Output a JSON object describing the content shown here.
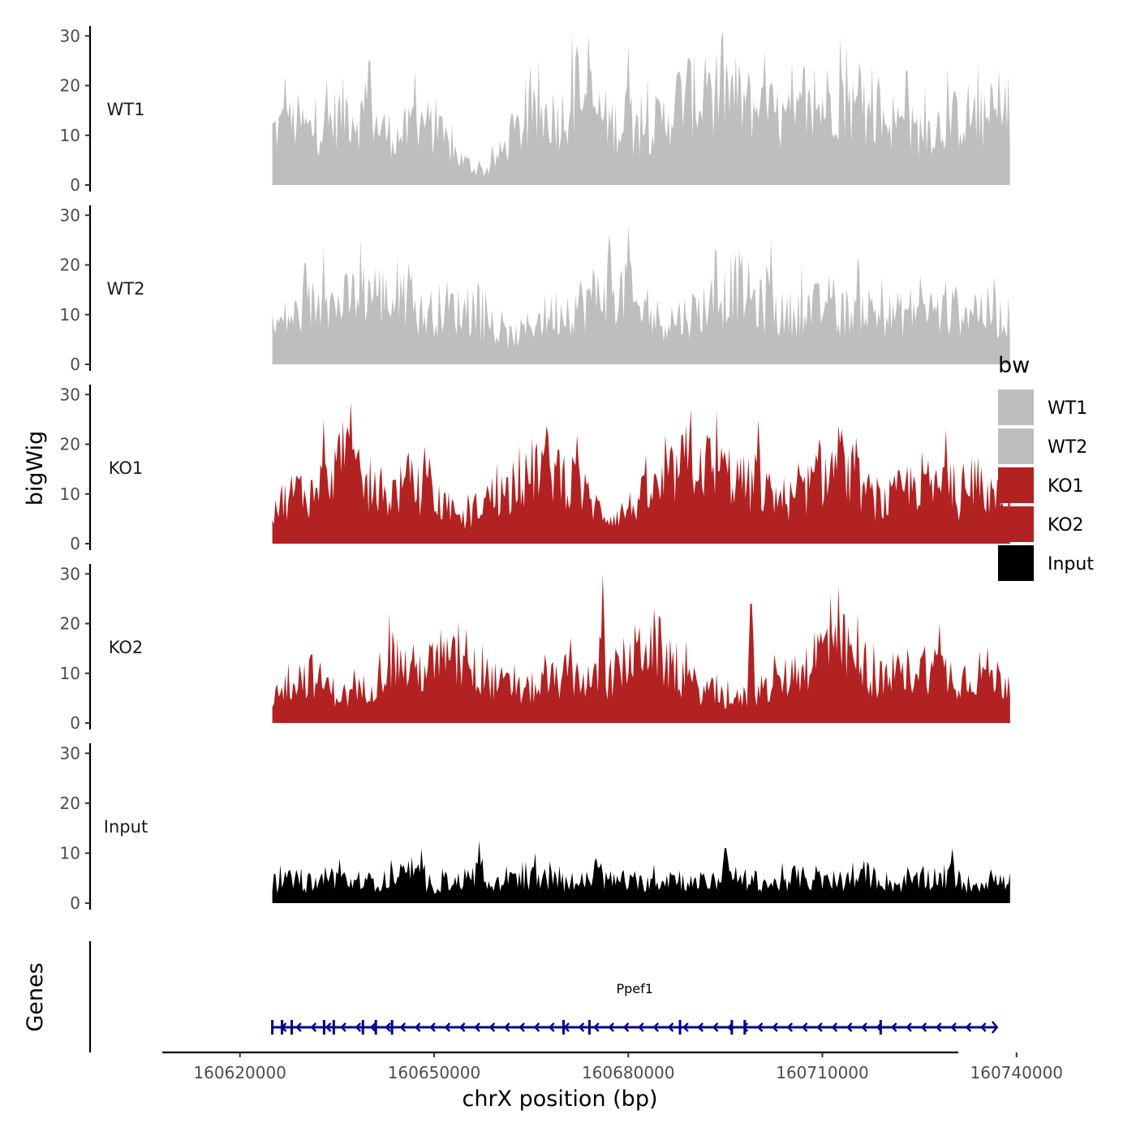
{
  "chart_data": {
    "type": "area",
    "xlabel": "chrX position (bp)",
    "ylabel": "bigWig",
    "genes_panel_label": "Genes",
    "xlim": [
      160608000,
      160731000
    ],
    "x_ticks": [
      160620000,
      160650000,
      160680000,
      160710000,
      160740000
    ],
    "x_tick_labels": [
      "160620000",
      "160650000",
      "160680000",
      "160710000",
      "160740000"
    ],
    "ylim": [
      0,
      32
    ],
    "y_ticks": [
      0,
      10,
      20,
      30
    ],
    "y_tick_labels": [
      "0",
      "10",
      "20",
      "30"
    ],
    "region": [
      160625000,
      160739000
    ],
    "legend_title": "bw",
    "legend": [
      {
        "label": "WT1",
        "color": "#bebebe"
      },
      {
        "label": "WT2",
        "color": "#bebebe"
      },
      {
        "label": "KO1",
        "color": "#b22222"
      },
      {
        "label": "KO2",
        "color": "#b22222"
      },
      {
        "label": "Input",
        "color": "#000000"
      }
    ],
    "series": [
      {
        "name": "WT1",
        "color": "#bebebe",
        "profile": [
          12,
          13,
          14,
          12,
          13,
          15,
          17,
          15,
          14,
          12,
          11,
          12,
          14,
          12,
          9,
          6,
          4,
          3,
          6,
          10,
          13,
          15,
          16,
          15,
          19,
          21,
          16,
          14,
          13,
          12,
          13,
          14,
          17,
          21,
          19,
          21,
          22,
          20,
          18,
          17,
          16,
          14,
          15,
          16,
          18,
          20,
          18,
          16,
          15,
          15,
          14,
          12,
          12,
          13,
          14,
          15,
          16,
          14,
          15,
          14
        ],
        "peaks": [
          [
            160627000,
            22
          ],
          [
            160640000,
            25
          ],
          [
            160647000,
            23
          ],
          [
            160680000,
            28
          ],
          [
            160692000,
            26
          ],
          [
            160701000,
            27
          ],
          [
            160723000,
            23
          ]
        ]
      },
      {
        "name": "WT2",
        "color": "#bebebe",
        "profile": [
          8,
          10,
          11,
          13,
          14,
          13,
          14,
          16,
          17,
          15,
          14,
          13,
          11,
          12,
          13,
          12,
          11,
          9,
          7,
          6,
          7,
          10,
          11,
          12,
          13,
          14,
          16,
          18,
          16,
          13,
          11,
          10,
          10,
          11,
          12,
          14,
          15,
          18,
          16,
          13,
          12,
          11,
          12,
          13,
          12,
          11,
          12,
          13,
          12,
          11,
          11,
          12,
          13,
          12,
          11,
          12,
          13,
          12,
          11,
          10
        ],
        "peaks": [
          [
            160633000,
            22
          ],
          [
            160680000,
            28
          ],
          [
            160702000,
            25
          ],
          [
            160711000,
            18
          ]
        ]
      },
      {
        "name": "KO1",
        "color": "#b22222",
        "profile": [
          8,
          10,
          12,
          11,
          13,
          19,
          18,
          14,
          11,
          10,
          12,
          13,
          12,
          10,
          8,
          5,
          7,
          10,
          11,
          12,
          13,
          17,
          18,
          16,
          14,
          11,
          8,
          6,
          7,
          9,
          11,
          12,
          15,
          18,
          19,
          17,
          16,
          15,
          13,
          12,
          11,
          10,
          10,
          13,
          15,
          17,
          15,
          13,
          10,
          9,
          11,
          13,
          14,
          12,
          11,
          10,
          11,
          12,
          10,
          9
        ],
        "peaks": [
          [
            160633000,
            25
          ],
          [
            160636000,
            25
          ],
          [
            160672000,
            22
          ],
          [
            160700000,
            25
          ],
          [
            160713000,
            23
          ],
          [
            160729000,
            23
          ]
        ]
      },
      {
        "name": "KO2",
        "color": "#b22222",
        "profile": [
          6,
          8,
          10,
          11,
          9,
          7,
          6,
          7,
          9,
          13,
          14,
          12,
          12,
          13,
          14,
          13,
          12,
          11,
          9,
          8,
          7,
          8,
          9,
          10,
          11,
          10,
          9,
          10,
          13,
          15,
          19,
          16,
          12,
          10,
          8,
          7,
          6,
          5,
          6,
          7,
          8,
          10,
          12,
          14,
          17,
          18,
          16,
          14,
          11,
          9,
          10,
          12,
          13,
          12,
          11,
          10,
          11,
          12,
          10,
          9
        ],
        "peaks": [
          [
            160676000,
            30
          ],
          [
            160655000,
            19
          ],
          [
            160699000,
            24
          ],
          [
            160712000,
            20
          ],
          [
            160728000,
            20
          ]
        ]
      },
      {
        "name": "Input",
        "color": "#000000",
        "profile": [
          4,
          5,
          5,
          4,
          5,
          6,
          5,
          4,
          5,
          5,
          6,
          6,
          5,
          4,
          5,
          5,
          6,
          5,
          4,
          5,
          5,
          6,
          5,
          5,
          4,
          5,
          6,
          5,
          5,
          4,
          5,
          5,
          6,
          5,
          4,
          5,
          5,
          6,
          5,
          5,
          4,
          5,
          6,
          5,
          5,
          4,
          5,
          5,
          6,
          5,
          4,
          5,
          5,
          6,
          5,
          5,
          4,
          5,
          5,
          4
        ],
        "peaks": [
          [
            160657000,
            12.5
          ],
          [
            160648000,
            11
          ],
          [
            160695000,
            11
          ],
          [
            160730000,
            11
          ]
        ]
      }
    ],
    "gene": {
      "name": "Ppef1",
      "start": 160625000,
      "end": 160737000,
      "strand": "-",
      "color": "#00008b",
      "exons": [
        160625000,
        160626500,
        160628000,
        160633000,
        160634500,
        160639000,
        160641000,
        160643500,
        160670000,
        160674000,
        160688000,
        160696000,
        160698000,
        160719000
      ]
    }
  }
}
